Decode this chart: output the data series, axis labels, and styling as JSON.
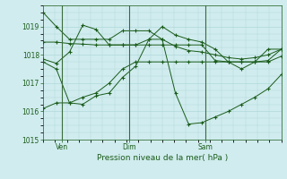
{
  "xlabel": "Pression niveau de la mer( hPa )",
  "ylim": [
    1015,
    1019.5
  ],
  "yticks": [
    1015,
    1016,
    1017,
    1018,
    1019
  ],
  "bg_color": "#d0ecee",
  "grid_color": "#b0d8da",
  "line_color": "#1a5c1a",
  "marker_color": "#1a5c1a",
  "vline_color": "#3a6b3a",
  "xtick_labels": [
    "Ven",
    "Dim",
    "Sam"
  ],
  "xtick_positions": [
    0.08,
    0.36,
    0.68
  ],
  "series": [
    [
      1019.5,
      1019.0,
      1018.55,
      1018.55,
      1018.55,
      1018.55,
      1018.85,
      1018.85,
      1018.85,
      1018.55,
      1018.3,
      1018.15,
      1018.1,
      1018.0,
      1017.9,
      1017.85,
      1017.9,
      1018.0,
      1018.2
    ],
    [
      1018.45,
      1018.45,
      1018.4,
      1018.38,
      1018.35,
      1018.35,
      1018.35,
      1018.35,
      1018.35,
      1018.35,
      1018.35,
      1018.35,
      1018.35,
      1017.8,
      1017.75,
      1017.75,
      1017.75,
      1017.8,
      1018.2
    ],
    [
      1017.85,
      1017.7,
      1018.1,
      1019.05,
      1018.9,
      1018.35,
      1018.35,
      1018.35,
      1018.55,
      1019.0,
      1018.7,
      1018.55,
      1018.45,
      1018.2,
      1017.75,
      1017.5,
      1017.75,
      1018.2,
      1018.2
    ],
    [
      1017.75,
      1017.5,
      1016.3,
      1016.25,
      1016.55,
      1016.65,
      1017.2,
      1017.6,
      1018.55,
      1018.55,
      1016.65,
      1015.55,
      1015.6,
      1015.8,
      1016.0,
      1016.25,
      1016.5,
      1016.8,
      1017.3
    ],
    [
      1016.1,
      1016.3,
      1016.3,
      1016.5,
      1016.65,
      1017.0,
      1017.5,
      1017.75,
      1017.75,
      1017.75,
      1017.75,
      1017.75,
      1017.75,
      1017.75,
      1017.75,
      1017.75,
      1017.75,
      1017.75,
      1017.95
    ]
  ]
}
